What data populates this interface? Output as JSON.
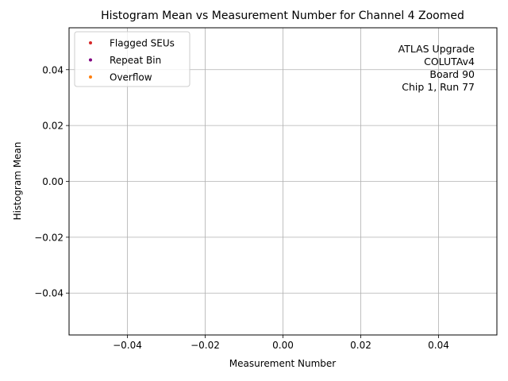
{
  "chart_data": {
    "type": "scatter",
    "title": "Histogram Mean vs Measurement Number for Channel 4 Zoomed",
    "xlabel": "Measurement Number",
    "ylabel": "Histogram Mean",
    "xlim": [
      -0.055,
      0.055
    ],
    "ylim": [
      -0.055,
      0.055
    ],
    "xticks": [
      -0.04,
      -0.02,
      0.0,
      0.02,
      0.04
    ],
    "yticks": [
      -0.04,
      -0.02,
      0.0,
      0.02,
      0.04
    ],
    "xtick_labels": [
      "−0.04",
      "−0.02",
      "0.00",
      "0.02",
      "0.04"
    ],
    "ytick_labels": [
      "−0.04",
      "−0.02",
      "0.00",
      "0.02",
      "0.04"
    ],
    "grid": true,
    "legend_position": "top-left",
    "series": [
      {
        "name": "Flagged SEUs",
        "color": "#d62728",
        "x": [],
        "y": []
      },
      {
        "name": "Repeat Bin",
        "color": "#800080",
        "x": [],
        "y": []
      },
      {
        "name": "Overflow",
        "color": "#ff7f0e",
        "x": [],
        "y": []
      }
    ],
    "annotation": [
      "ATLAS Upgrade",
      "COLUTAv4",
      "Board 90",
      "Chip 1, Run 77"
    ]
  }
}
